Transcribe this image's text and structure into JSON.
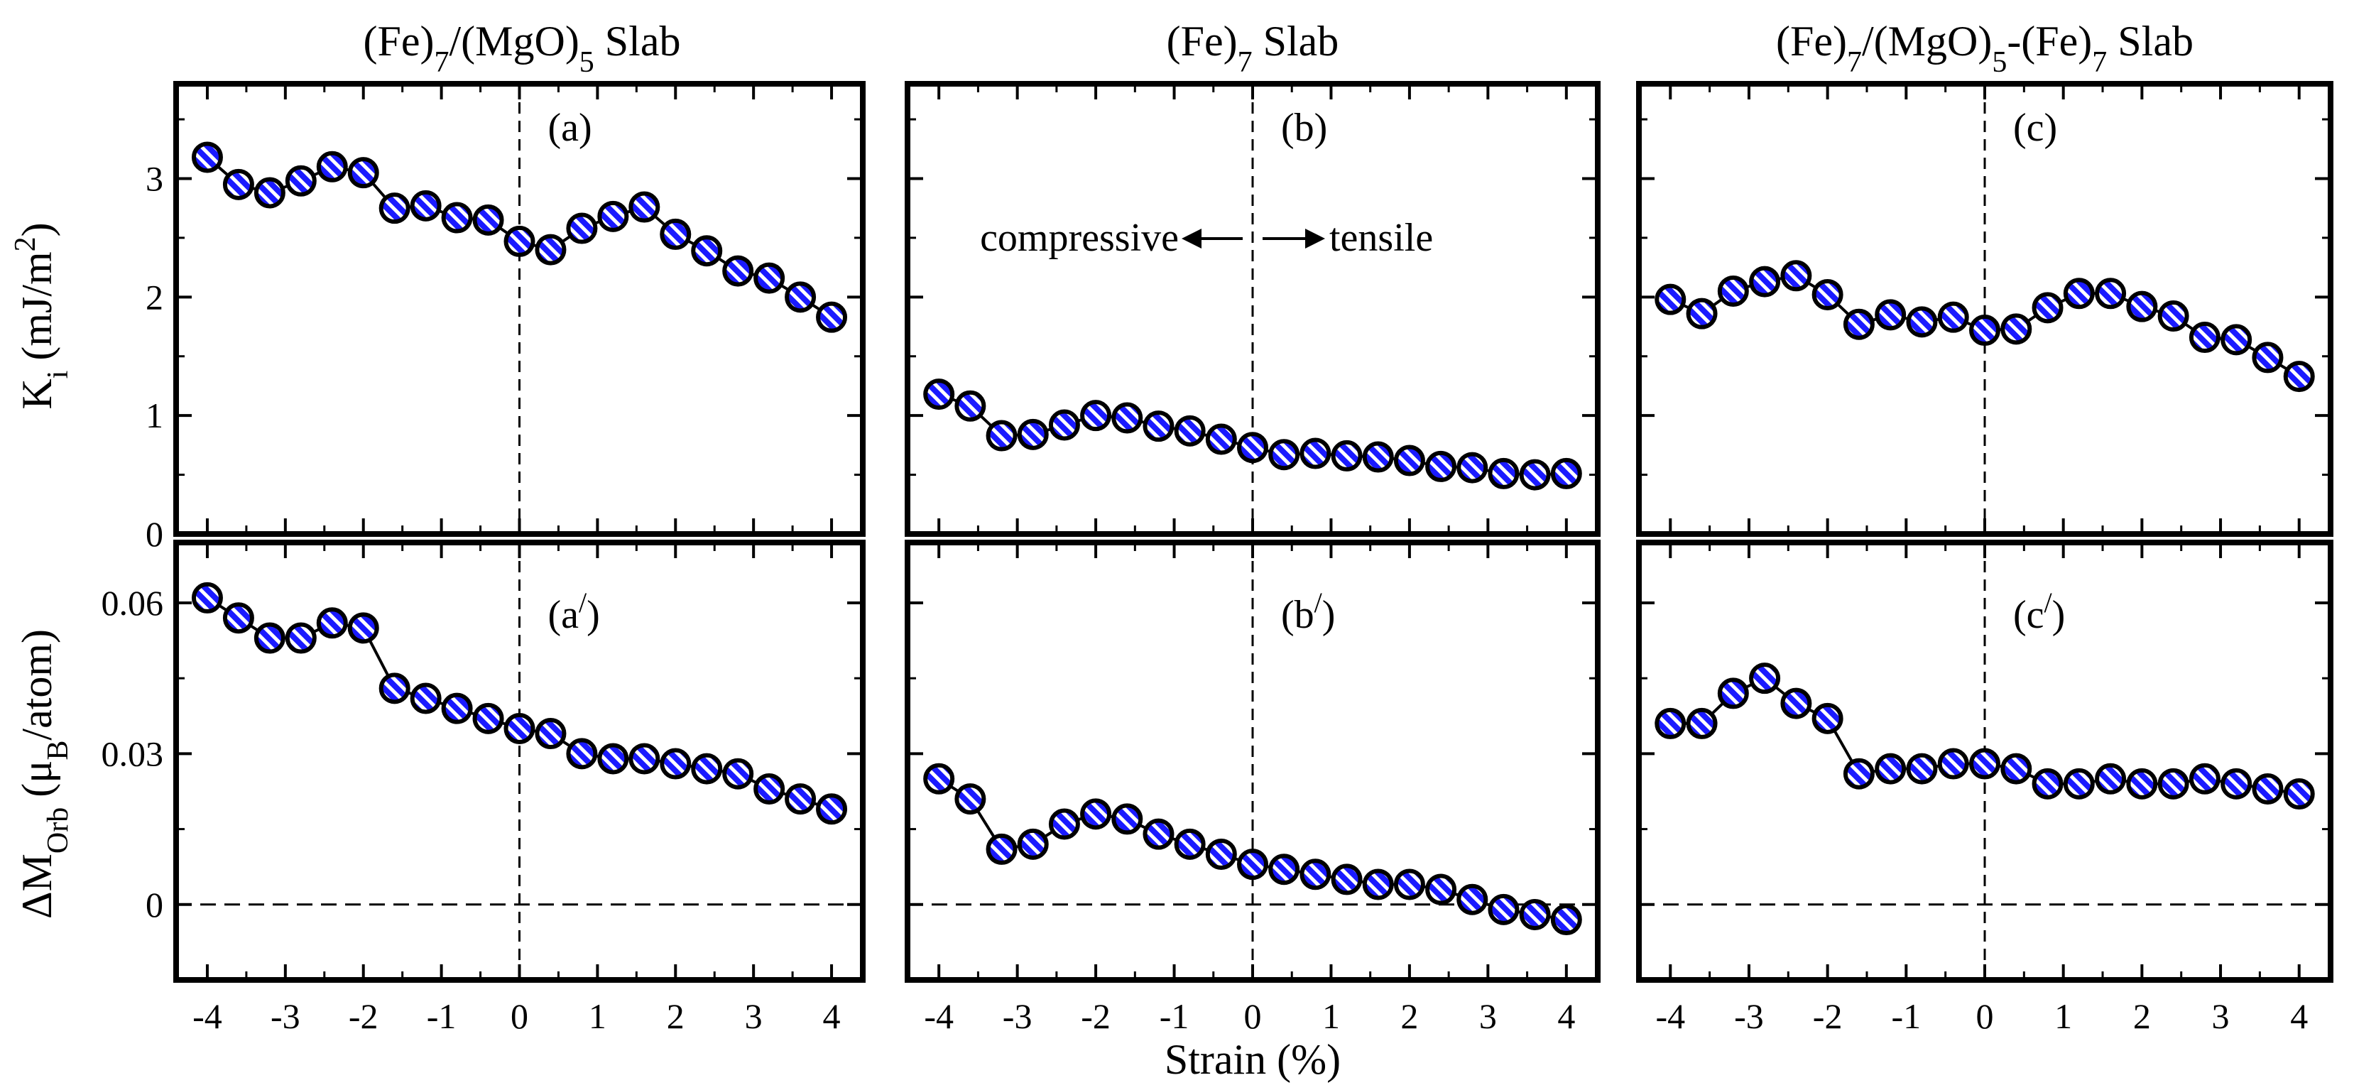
{
  "figure": {
    "xlabel": "Strain (%)",
    "top_ylabel": "K",
    "top_ylabel_sub": "i",
    "top_ylabel_unit": "(mJ/m",
    "top_ylabel_sup": "2",
    "top_ylabel_close": ")",
    "bottom_ylabel": "ΔM",
    "bottom_ylabel_sub": "Orb",
    "bottom_ylabel_unit": "(μ",
    "bottom_ylabel_unit_sub": "B",
    "bottom_ylabel_close": "/atom)",
    "annotation_left": "compressive",
    "annotation_right": "tensile",
    "colors": {
      "marker_fill": "#1a1aff",
      "stripe": "#ffffff",
      "line": "#000000"
    }
  },
  "columns": [
    {
      "title_parts": [
        "(Fe)",
        "7",
        "/(MgO)",
        "5",
        " Slab"
      ]
    },
    {
      "title_parts": [
        "(Fe)",
        "7",
        " Slab"
      ]
    },
    {
      "title_parts": [
        "(Fe)",
        "7",
        "/(MgO)",
        "5",
        "-(Fe)",
        "7",
        " Slab"
      ]
    }
  ],
  "chart_data": [
    {
      "type": "line",
      "panel": "(a)",
      "row": "top",
      "col": 0,
      "title": "(Fe)7/(MgO)5 Slab",
      "xlabel": "Strain (%)",
      "ylabel": "Ki (mJ/m2)",
      "xlim": [
        -4.4,
        4.4
      ],
      "ylim": [
        0,
        3.8
      ],
      "x": [
        -4.0,
        -3.6,
        -3.2,
        -2.8,
        -2.4,
        -2.0,
        -1.6,
        -1.2,
        -0.8,
        -0.4,
        0.0,
        0.4,
        0.8,
        1.2,
        1.6,
        2.0,
        2.4,
        2.8,
        3.2,
        3.6,
        4.0
      ],
      "values": [
        3.18,
        2.95,
        2.88,
        2.98,
        3.1,
        3.05,
        2.75,
        2.77,
        2.67,
        2.65,
        2.47,
        2.4,
        2.58,
        2.68,
        2.76,
        2.53,
        2.39,
        2.22,
        2.16,
        2.0,
        1.83
      ]
    },
    {
      "type": "line",
      "panel": "(b)",
      "row": "top",
      "col": 1,
      "title": "(Fe)7 Slab",
      "xlabel": "Strain (%)",
      "ylabel": "Ki (mJ/m2)",
      "xlim": [
        -4.4,
        4.4
      ],
      "ylim": [
        0,
        3.8
      ],
      "x": [
        -4.0,
        -3.6,
        -3.2,
        -2.8,
        -2.4,
        -2.0,
        -1.6,
        -1.2,
        -0.8,
        -0.4,
        0.0,
        0.4,
        0.8,
        1.2,
        1.6,
        2.0,
        2.4,
        2.8,
        3.2,
        3.6,
        4.0
      ],
      "values": [
        1.18,
        1.08,
        0.83,
        0.84,
        0.92,
        1.0,
        0.98,
        0.91,
        0.87,
        0.8,
        0.73,
        0.67,
        0.68,
        0.66,
        0.65,
        0.62,
        0.57,
        0.56,
        0.51,
        0.5,
        0.51
      ]
    },
    {
      "type": "line",
      "panel": "(c)",
      "row": "top",
      "col": 2,
      "title": "(Fe)7/(MgO)5-(Fe)7 Slab",
      "xlabel": "Strain (%)",
      "ylabel": "Ki (mJ/m2)",
      "xlim": [
        -4.4,
        4.4
      ],
      "ylim": [
        0,
        3.8
      ],
      "x": [
        -4.0,
        -3.6,
        -3.2,
        -2.8,
        -2.4,
        -2.0,
        -1.6,
        -1.2,
        -0.8,
        -0.4,
        0.0,
        0.4,
        0.8,
        1.2,
        1.6,
        2.0,
        2.4,
        2.8,
        3.2,
        3.6,
        4.0
      ],
      "values": [
        1.98,
        1.86,
        2.05,
        2.13,
        2.18,
        2.02,
        1.77,
        1.85,
        1.79,
        1.83,
        1.72,
        1.73,
        1.91,
        2.03,
        2.03,
        1.92,
        1.84,
        1.66,
        1.64,
        1.49,
        1.33
      ]
    },
    {
      "type": "line",
      "panel": "(a')",
      "row": "bottom",
      "col": 0,
      "xlabel": "Strain (%)",
      "ylabel": "ΔMOrb (μB/atom)",
      "xlim": [
        -4.4,
        4.4
      ],
      "ylim": [
        -0.015,
        0.072
      ],
      "x": [
        -4.0,
        -3.6,
        -3.2,
        -2.8,
        -2.4,
        -2.0,
        -1.6,
        -1.2,
        -0.8,
        -0.4,
        0.0,
        0.4,
        0.8,
        1.2,
        1.6,
        2.0,
        2.4,
        2.8,
        3.2,
        3.6,
        4.0
      ],
      "values": [
        0.061,
        0.057,
        0.053,
        0.053,
        0.056,
        0.055,
        0.043,
        0.041,
        0.039,
        0.037,
        0.035,
        0.034,
        0.03,
        0.029,
        0.029,
        0.028,
        0.027,
        0.026,
        0.023,
        0.021,
        0.019
      ]
    },
    {
      "type": "line",
      "panel": "(b')",
      "row": "bottom",
      "col": 1,
      "xlabel": "Strain (%)",
      "ylabel": "ΔMOrb (μB/atom)",
      "xlim": [
        -4.4,
        4.4
      ],
      "ylim": [
        -0.015,
        0.072
      ],
      "x": [
        -4.0,
        -3.6,
        -3.2,
        -2.8,
        -2.4,
        -2.0,
        -1.6,
        -1.2,
        -0.8,
        -0.4,
        0.0,
        0.4,
        0.8,
        1.2,
        1.6,
        2.0,
        2.4,
        2.8,
        3.2,
        3.6,
        4.0
      ],
      "values": [
        0.025,
        0.021,
        0.011,
        0.012,
        0.016,
        0.018,
        0.017,
        0.014,
        0.012,
        0.01,
        0.008,
        0.007,
        0.006,
        0.005,
        0.004,
        0.004,
        0.003,
        0.001,
        -0.001,
        -0.002,
        -0.003
      ]
    },
    {
      "type": "line",
      "panel": "(c')",
      "row": "bottom",
      "col": 2,
      "xlabel": "Strain (%)",
      "ylabel": "ΔMOrb (μB/atom)",
      "xlim": [
        -4.4,
        4.4
      ],
      "ylim": [
        -0.015,
        0.072
      ],
      "x": [
        -4.0,
        -3.6,
        -3.2,
        -2.8,
        -2.4,
        -2.0,
        -1.6,
        -1.2,
        -0.8,
        -0.4,
        0.0,
        0.4,
        0.8,
        1.2,
        1.6,
        2.0,
        2.4,
        2.8,
        3.2,
        3.6,
        4.0
      ],
      "values": [
        0.036,
        0.036,
        0.042,
        0.045,
        0.04,
        0.037,
        0.026,
        0.027,
        0.027,
        0.028,
        0.028,
        0.027,
        0.024,
        0.024,
        0.025,
        0.024,
        0.024,
        0.025,
        0.024,
        0.023,
        0.022
      ]
    }
  ],
  "axes": {
    "x_ticks": [
      -4,
      -3,
      -2,
      -1,
      0,
      1,
      2,
      3,
      4
    ],
    "x_tick_labels": [
      "-4",
      "-3",
      "-2",
      "-1",
      "0",
      "1",
      "2",
      "3",
      "4"
    ],
    "top_y_ticks": [
      0,
      1,
      2,
      3
    ],
    "top_y_tick_labels": [
      "0",
      "1",
      "2",
      "3"
    ],
    "bottom_y_ticks": [
      0,
      0.03,
      0.06
    ],
    "bottom_y_tick_labels": [
      "0",
      "0.03",
      "0.06"
    ]
  }
}
